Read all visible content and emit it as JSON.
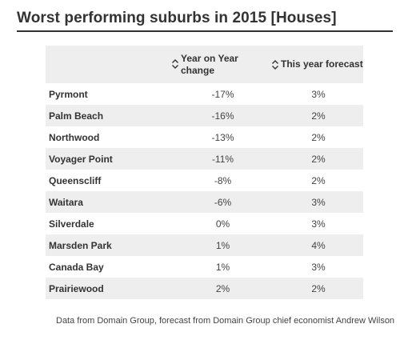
{
  "page": {
    "title": "Worst performing suburbs in 2015 [Houses]",
    "footnote": "Data from Domain Group, forecast from Domain Group chief economist Andrew Wilson"
  },
  "chart_data": {
    "type": "table",
    "title": "Worst performing suburbs in 2015 [Houses]",
    "columns": [
      "",
      "Year on Year change",
      "This year forecast"
    ],
    "sortable_columns": [
      "Year on Year change",
      "This year forecast"
    ],
    "rows": [
      {
        "suburb": "Pyrmont",
        "year_on_year_change": "-17%",
        "this_year_forecast": "3%"
      },
      {
        "suburb": "Palm Beach",
        "year_on_year_change": "-16%",
        "this_year_forecast": "2%"
      },
      {
        "suburb": "Northwood",
        "year_on_year_change": "-13%",
        "this_year_forecast": "2%"
      },
      {
        "suburb": "Voyager Point",
        "year_on_year_change": "-11%",
        "this_year_forecast": "2%"
      },
      {
        "suburb": "Queenscliff",
        "year_on_year_change": "-8%",
        "this_year_forecast": "2%"
      },
      {
        "suburb": "Waitara",
        "year_on_year_change": "-6%",
        "this_year_forecast": "3%"
      },
      {
        "suburb": "Silverdale",
        "year_on_year_change": "0%",
        "this_year_forecast": "3%"
      },
      {
        "suburb": "Marsden Park",
        "year_on_year_change": "1%",
        "this_year_forecast": "4%"
      },
      {
        "suburb": "Canada Bay",
        "year_on_year_change": "1%",
        "this_year_forecast": "3%"
      },
      {
        "suburb": "Prairiewood",
        "year_on_year_change": "2%",
        "this_year_forecast": "2%"
      }
    ],
    "stripe_color": "#eeeeee",
    "icons": {
      "sort": "sort-icon"
    }
  }
}
